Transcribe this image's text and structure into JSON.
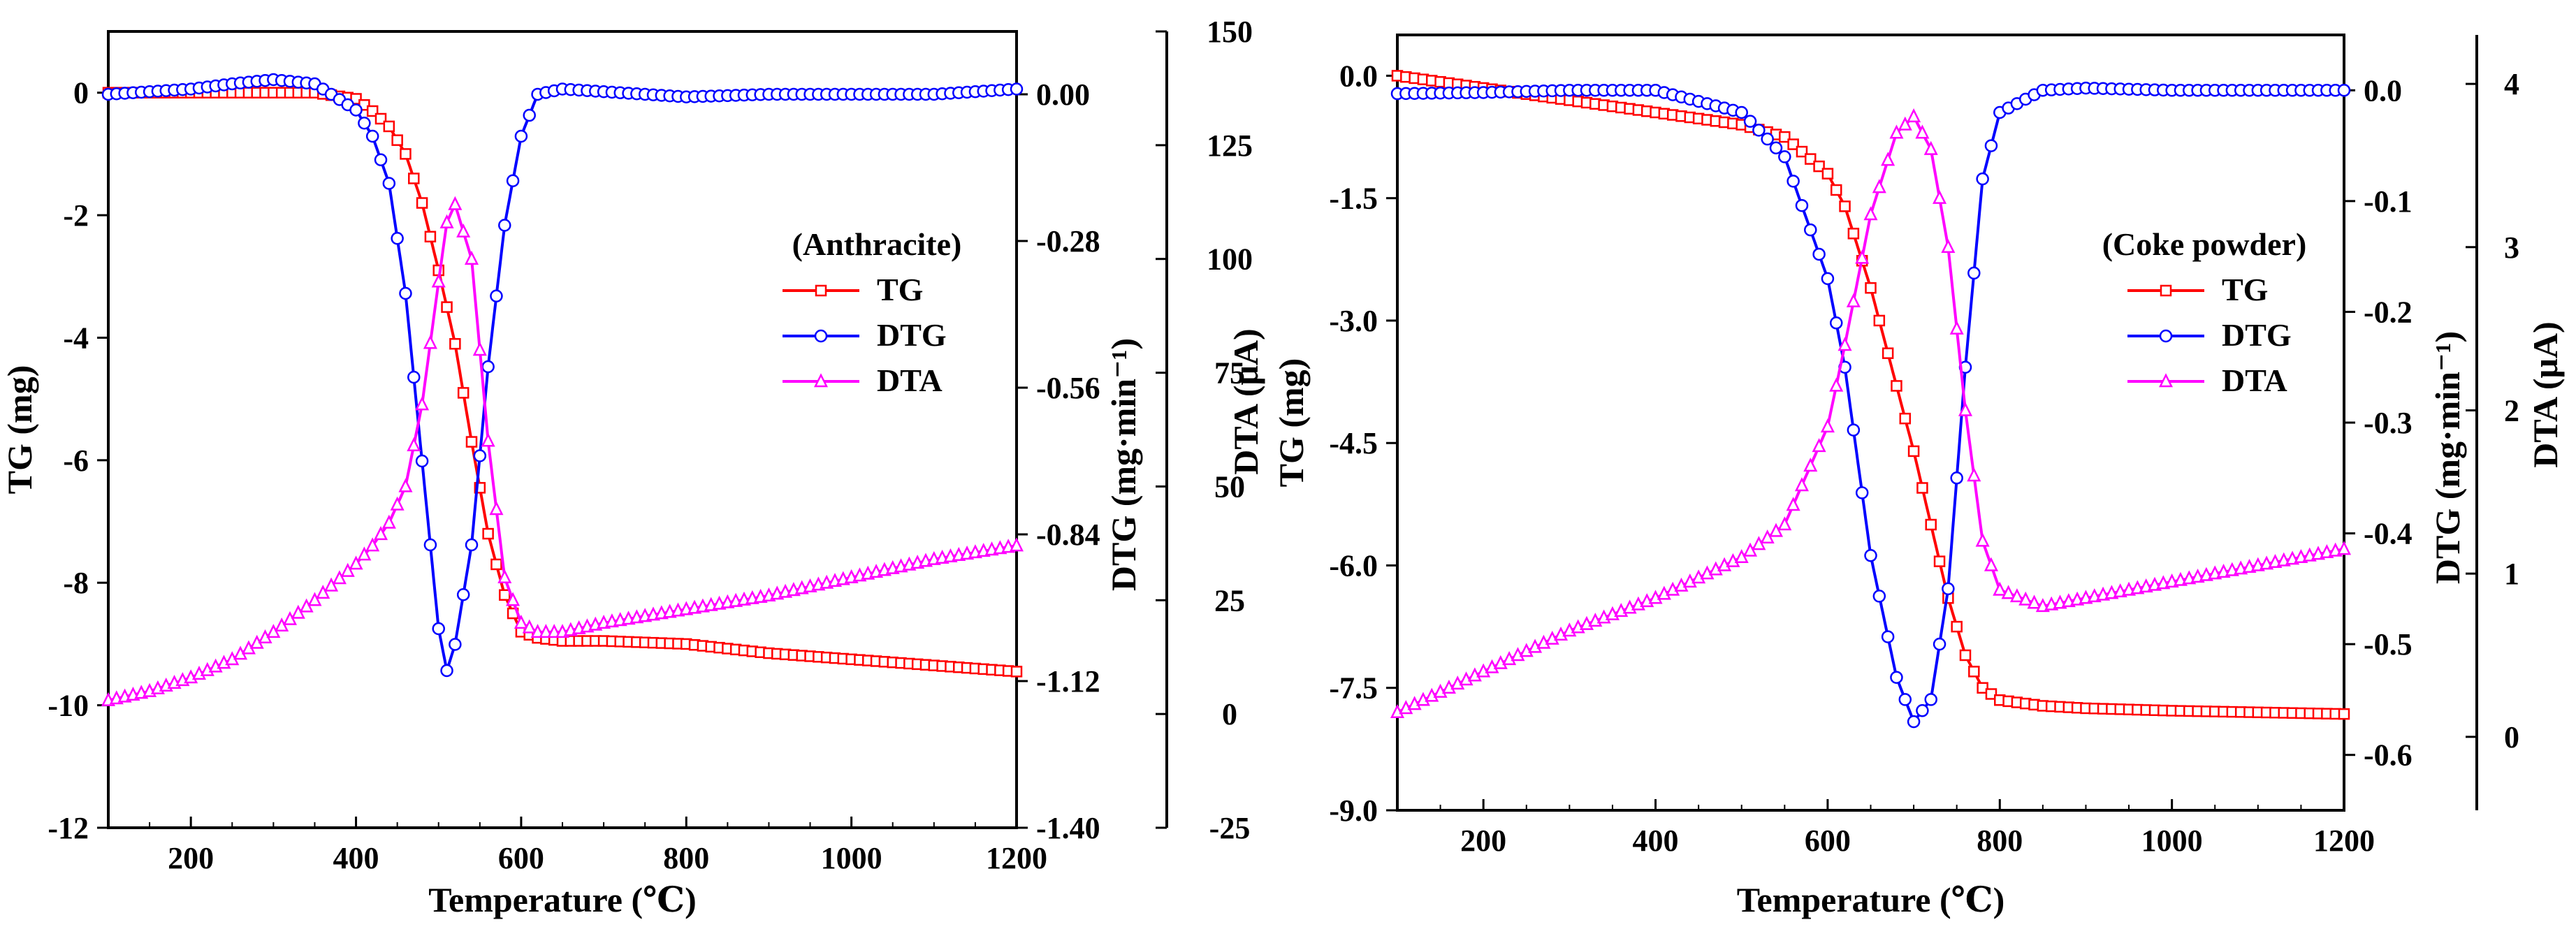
{
  "chart_data": [
    {
      "type": "line",
      "title": "(Anthracite)",
      "xlabel": "Temperature (℃)",
      "ylabel": "TG  (mg)",
      "y2label": "DTG  (mg·min⁻¹)",
      "y3label": "DTA  (μA)",
      "xlim": [
        100,
        1200
      ],
      "ylim": [
        -12,
        1
      ],
      "y2lim": [
        -1.4,
        0.12
      ],
      "y3lim": [
        -25,
        150
      ],
      "xticks": [
        "200",
        "400",
        "600",
        "800",
        "1000",
        "1200"
      ],
      "yticks": [
        "0",
        "-2",
        "-4",
        "-6",
        "-8",
        "-10",
        "-12"
      ],
      "y2ticks": [
        "0.00",
        "-0.28",
        "-0.56",
        "-0.84",
        "-1.12",
        "-1.40"
      ],
      "y3ticks": [
        "150",
        "125",
        "100",
        "75",
        "50",
        "25",
        "0",
        "-25"
      ],
      "legend": [
        "TG",
        "DTG",
        "DTA"
      ],
      "x": [
        100,
        150,
        200,
        250,
        300,
        350,
        400,
        420,
        440,
        460,
        480,
        500,
        510,
        520,
        540,
        560,
        580,
        600,
        620,
        650,
        700,
        800,
        900,
        1000,
        1100,
        1200
      ],
      "series": [
        {
          "name": "TG",
          "axis": "y",
          "color": "#ff0000",
          "marker": "square",
          "values": [
            0,
            0,
            0,
            0,
            0,
            0,
            -0.1,
            -0.3,
            -0.55,
            -1.0,
            -1.8,
            -2.9,
            -3.5,
            -4.1,
            -5.7,
            -7.2,
            -8.2,
            -8.8,
            -8.9,
            -8.95,
            -8.95,
            -9.0,
            -9.15,
            -9.25,
            -9.35,
            -9.45
          ]
        },
        {
          "name": "DTG",
          "axis": "y2",
          "color": "#0000ff",
          "marker": "circle",
          "values": [
            0.0,
            0.005,
            0.01,
            0.02,
            0.028,
            0.02,
            -0.03,
            -0.08,
            -0.17,
            -0.38,
            -0.7,
            -1.02,
            -1.1,
            -1.05,
            -0.86,
            -0.52,
            -0.25,
            -0.08,
            0.0,
            0.01,
            0.005,
            -0.005,
            0.0,
            0.0,
            0.0,
            0.01
          ]
        },
        {
          "name": "DTA",
          "axis": "y3",
          "color": "#ff00ff",
          "marker": "triangle",
          "values": [
            3,
            5,
            8,
            12,
            18,
            25,
            33,
            37,
            42,
            50,
            68,
            95,
            108,
            112,
            100,
            60,
            30,
            20,
            18,
            18,
            20,
            23,
            26,
            30,
            34,
            37
          ]
        }
      ]
    },
    {
      "type": "line",
      "title": "(Coke powder)",
      "xlabel": "Temperature (℃)",
      "ylabel": "TG  (mg)",
      "y2label": "DTG  (mg·min⁻¹)",
      "y3label": "DTA  (μA)",
      "xlim": [
        100,
        1200
      ],
      "ylim": [
        -9.0,
        0.5
      ],
      "y2lim": [
        -0.65,
        0.05
      ],
      "y3lim": [
        -0.45,
        4.3
      ],
      "xticks": [
        "200",
        "400",
        "600",
        "800",
        "1000",
        "1200"
      ],
      "yticks": [
        "0.0",
        "-1.5",
        "-3.0",
        "-4.5",
        "-6.0",
        "-7.5",
        "-9.0"
      ],
      "y2ticks": [
        "0.0",
        "-0.1",
        "-0.2",
        "-0.3",
        "-0.4",
        "-0.5",
        "-0.6"
      ],
      "y3ticks": [
        "4",
        "3",
        "2",
        "1",
        "0"
      ],
      "legend": [
        "TG",
        "DTG",
        "DTA"
      ],
      "x": [
        100,
        200,
        300,
        400,
        500,
        550,
        600,
        620,
        650,
        680,
        700,
        720,
        740,
        760,
        780,
        800,
        850,
        900,
        1000,
        1100,
        1200
      ],
      "series": [
        {
          "name": "TG",
          "axis": "y",
          "color": "#ff0000",
          "marker": "square",
          "values": [
            0.0,
            -0.15,
            -0.3,
            -0.45,
            -0.6,
            -0.75,
            -1.2,
            -1.6,
            -2.6,
            -3.8,
            -4.6,
            -5.5,
            -6.4,
            -7.1,
            -7.5,
            -7.65,
            -7.72,
            -7.75,
            -7.78,
            -7.8,
            -7.82
          ]
        },
        {
          "name": "DTG",
          "axis": "y2",
          "color": "#0000ff",
          "marker": "circle",
          "values": [
            -0.003,
            -0.002,
            0.0,
            0.0,
            -0.02,
            -0.06,
            -0.17,
            -0.25,
            -0.42,
            -0.53,
            -0.57,
            -0.55,
            -0.45,
            -0.25,
            -0.08,
            -0.02,
            0.0,
            0.002,
            0.0,
            0.0,
            0.0
          ]
        },
        {
          "name": "DTA",
          "axis": "y3",
          "color": "#ff00ff",
          "marker": "triangle",
          "values": [
            0.15,
            0.4,
            0.65,
            0.85,
            1.1,
            1.3,
            1.9,
            2.4,
            3.2,
            3.7,
            3.8,
            3.6,
            3.0,
            2.0,
            1.2,
            0.9,
            0.8,
            0.85,
            0.95,
            1.05,
            1.15
          ]
        }
      ]
    }
  ]
}
